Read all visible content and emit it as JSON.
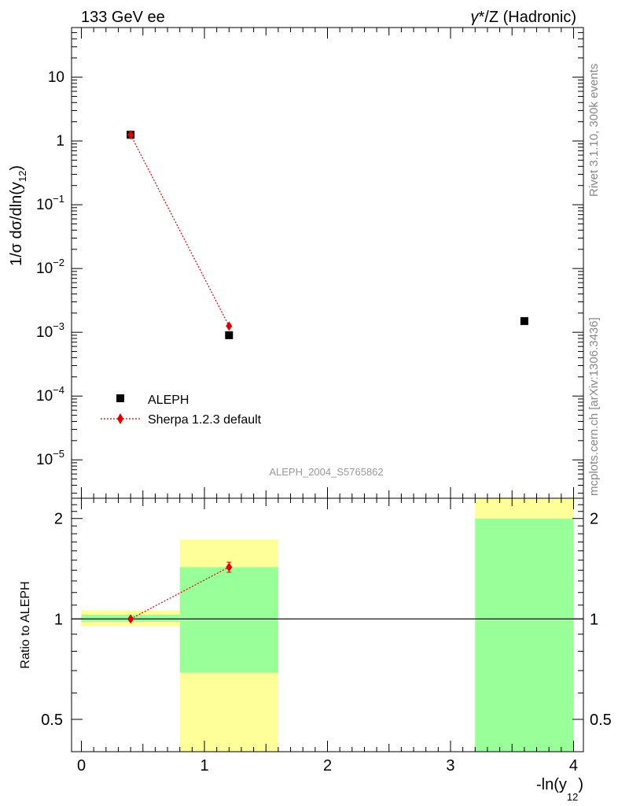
{
  "header": {
    "left": "133 GeV ee",
    "right_gamma": "γ",
    "right_rest": "*/Z (Hadronic)"
  },
  "side_labels": {
    "rivet": "Rivet 3.1.10,  300k events",
    "mcplots": "mcplots.cern.ch [arXiv:1306.3436]"
  },
  "watermark": "ALEPH_2004_S5765862",
  "colors": {
    "data": "#000000",
    "mc": "#e00000",
    "band_inner": "#99ff99",
    "band_outer": "#ffff99"
  },
  "chart_data": [
    {
      "type": "scatter",
      "y_scale": "log",
      "xlim": [
        -0.08,
        4.08
      ],
      "ylim": [
        2.5e-06,
        60
      ],
      "ylabel": {
        "prefix": "1/σ  dσ/dln(y",
        "sub": "12",
        "suffix": ")"
      },
      "y_ticks": [
        {
          "value": 10,
          "base": "10",
          "exp": ""
        },
        {
          "value": 1,
          "base": "1",
          "exp": ""
        },
        {
          "value": 0.1,
          "base": "10",
          "exp": "−1"
        },
        {
          "value": 0.01,
          "base": "10",
          "exp": "−2"
        },
        {
          "value": 0.001,
          "base": "10",
          "exp": "−3"
        },
        {
          "value": 0.0001,
          "base": "10",
          "exp": "−4"
        },
        {
          "value": 1e-05,
          "base": "10",
          "exp": "−5"
        }
      ],
      "legend": {
        "position": "bottom-left",
        "entries": [
          "ALEPH",
          "Sherpa 1.2.3 default"
        ]
      },
      "series": [
        {
          "name": "ALEPH",
          "marker": "square",
          "x": [
            0.4,
            1.2,
            3.6
          ],
          "y": [
            1.25,
            0.0009,
            0.0015
          ]
        },
        {
          "name": "Sherpa 1.2.3 default",
          "marker": "diamond",
          "line": "dotted",
          "x": [
            0.4,
            1.2
          ],
          "y": [
            1.25,
            0.00125
          ]
        }
      ]
    },
    {
      "type": "scatter",
      "y_scale": "log",
      "xlim": [
        -0.08,
        4.08
      ],
      "ylim": [
        0.4,
        2.3
      ],
      "ylabel": "Ratio to ALEPH",
      "xlabel": {
        "prefix": "-ln(y",
        "sub": "12",
        "suffix": ")"
      },
      "y_ticks": [
        {
          "value": 0.5,
          "label": "0.5"
        },
        {
          "value": 1,
          "label": "1"
        },
        {
          "value": 2,
          "label": "2"
        }
      ],
      "x_ticks": [
        {
          "value": 0,
          "label": "0"
        },
        {
          "value": 1,
          "label": "1"
        },
        {
          "value": 2,
          "label": "2"
        },
        {
          "value": 3,
          "label": "3"
        },
        {
          "value": 4,
          "label": "4"
        }
      ],
      "reference_line": 1,
      "bands": [
        {
          "x0": 0.0,
          "x1": 0.8,
          "inner": [
            0.98,
            1.03
          ],
          "outer": [
            0.95,
            1.06
          ]
        },
        {
          "x0": 0.8,
          "x1": 1.6,
          "inner": [
            0.69,
            1.43
          ],
          "outer": [
            0.4,
            1.73
          ]
        },
        {
          "x0": 3.2,
          "x1": 4.0,
          "inner": [
            0.4,
            2.0
          ],
          "outer": [
            0.4,
            2.3
          ]
        }
      ],
      "series": [
        {
          "name": "Sherpa 1.2.3 default",
          "marker": "diamond",
          "line": "dotted",
          "x": [
            0.4,
            1.2
          ],
          "y": [
            1.0,
            1.43
          ],
          "err": [
            0.0,
            0.05
          ]
        }
      ]
    }
  ]
}
